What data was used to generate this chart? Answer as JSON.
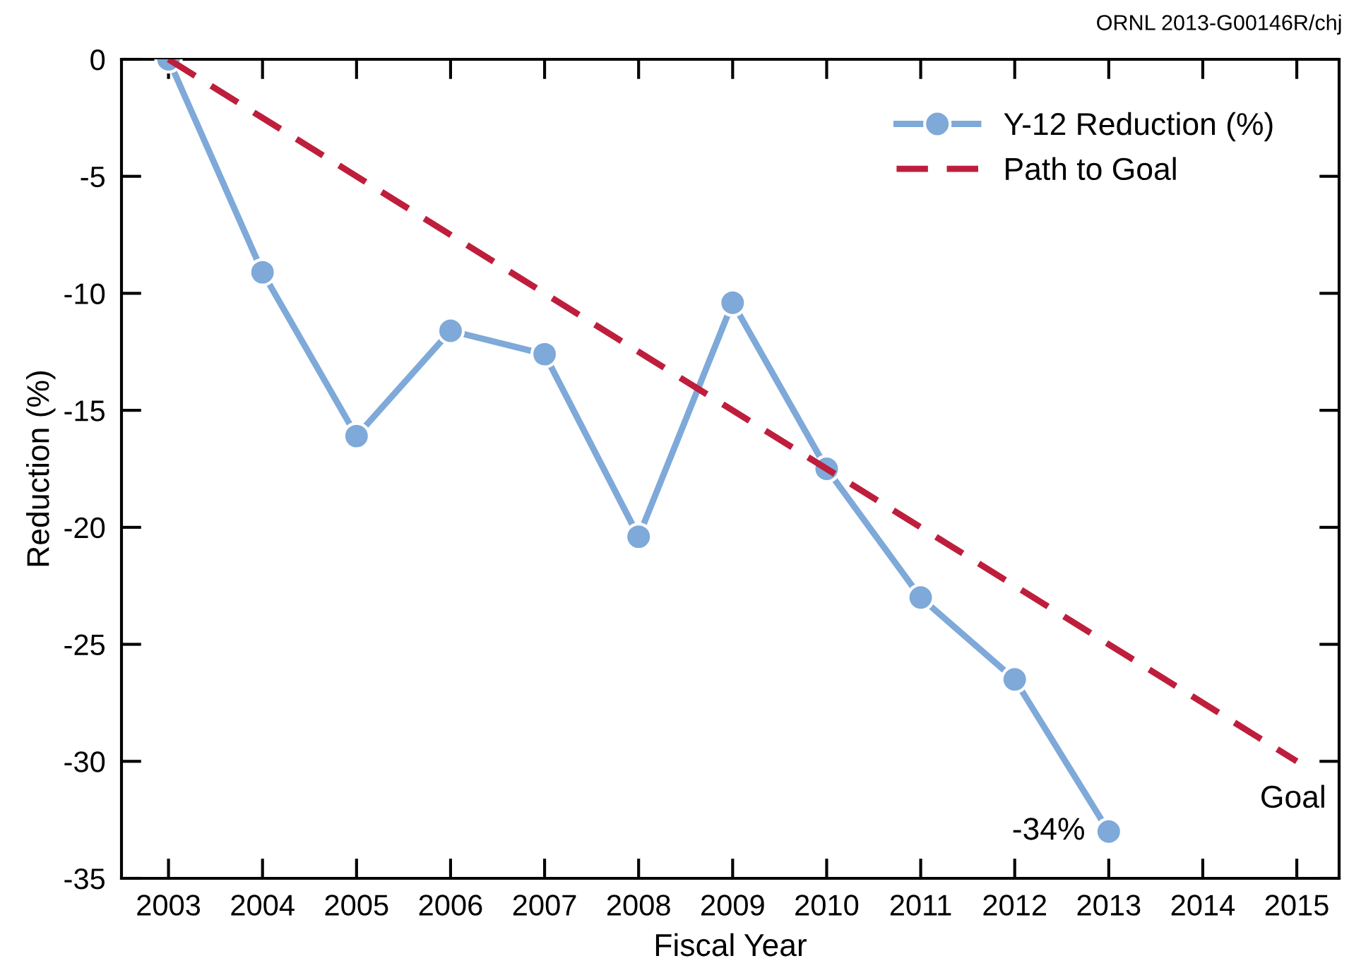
{
  "chart_data": {
    "type": "line",
    "xlabel": "Fiscal Year",
    "ylabel": "Reduction (%)",
    "x": [
      2003,
      2004,
      2005,
      2006,
      2007,
      2008,
      2009,
      2010,
      2011,
      2012,
      2013
    ],
    "series": [
      {
        "name": "Y-12 Reduction (%)",
        "color": "#7ea9d9",
        "marker": "circle",
        "line_style": "solid",
        "values": [
          0,
          -9.1,
          -16.1,
          -11.6,
          -12.6,
          -20.4,
          -10.4,
          -17.5,
          -23.0,
          -26.5,
          -33.0
        ]
      },
      {
        "name": "Path to Goal",
        "color": "#be1e3c",
        "marker": "none",
        "line_style": "dashed",
        "x": [
          2003,
          2015
        ],
        "values": [
          0,
          -30
        ]
      }
    ],
    "xlim": [
      2002.5,
      2015.45
    ],
    "xticks": [
      2003,
      2004,
      2005,
      2006,
      2007,
      2008,
      2009,
      2010,
      2011,
      2012,
      2013,
      2014,
      2015
    ],
    "ylim": [
      -35,
      0
    ],
    "yticks": [
      -35,
      -30,
      -25,
      -20,
      -15,
      -10,
      -5,
      0
    ],
    "grid": false,
    "legend": "top right",
    "annotations": [
      {
        "text": "-34%",
        "x": 2013,
        "y": -33.0
      },
      {
        "text": "Goal",
        "x": 2015,
        "y": -30
      },
      "ORNL 2013-G00146R/chj"
    ]
  }
}
